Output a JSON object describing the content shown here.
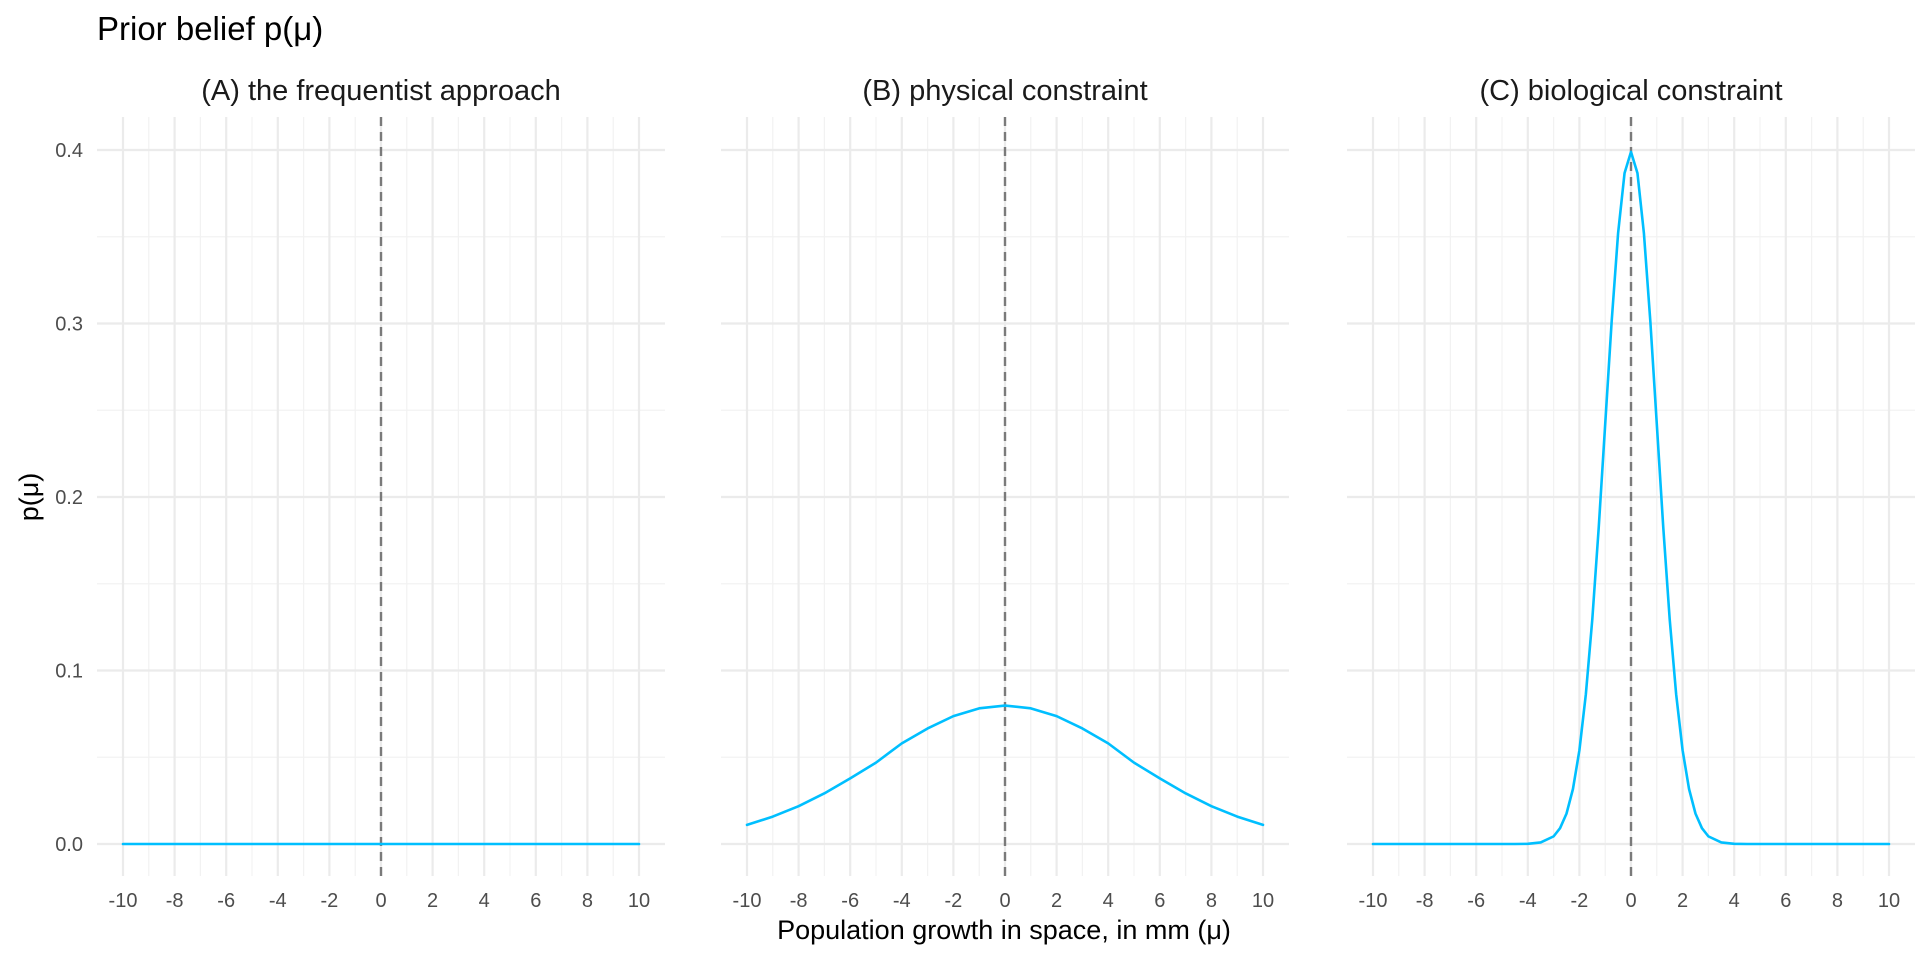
{
  "chart_data": {
    "type": "line",
    "title": "Prior belief p(μ)",
    "xlabel": "Population growth in space, in mm (μ)",
    "ylabel": "p(μ)",
    "xlim": [
      -10,
      10
    ],
    "ylim": [
      0,
      0.4
    ],
    "x_ticks": [
      "-10",
      "-8",
      "-6",
      "-4",
      "-2",
      "0",
      "2",
      "4",
      "6",
      "8",
      "10"
    ],
    "y_ticks": [
      "0.0",
      "0.1",
      "0.2",
      "0.3",
      "0.4"
    ],
    "grid": true,
    "reference_line": {
      "x": 0,
      "style": "dashed",
      "color": "#7a7a7a"
    },
    "line_color": "#00bfff",
    "facets": [
      {
        "title": "(A) the frequentist approach",
        "x": [
          -10,
          -8,
          -6,
          -4,
          -2,
          0,
          2,
          4,
          6,
          8,
          10
        ],
        "y": [
          0,
          0,
          0,
          0,
          0,
          0,
          0,
          0,
          0,
          0,
          0
        ]
      },
      {
        "title": "(B) physical constraint",
        "x": [
          -10,
          -9,
          -8,
          -7,
          -6,
          -5,
          -4,
          -3,
          -2,
          -1,
          0,
          1,
          2,
          3,
          4,
          5,
          6,
          7,
          8,
          9,
          10
        ],
        "y": [
          0.011,
          0.0158,
          0.0218,
          0.0292,
          0.0378,
          0.0469,
          0.058,
          0.0666,
          0.0737,
          0.0782,
          0.0798,
          0.0782,
          0.0737,
          0.0666,
          0.058,
          0.0469,
          0.0378,
          0.0292,
          0.0218,
          0.0158,
          0.011
        ]
      },
      {
        "title": "(C) biological constraint",
        "x": [
          -10,
          -8,
          -6,
          -4.5,
          -4,
          -3.5,
          -3,
          -2.75,
          -2.5,
          -2.25,
          -2,
          -1.75,
          -1.5,
          -1.25,
          -1,
          -0.75,
          -0.5,
          -0.25,
          0,
          0.25,
          0.5,
          0.75,
          1,
          1.25,
          1.5,
          1.75,
          2,
          2.25,
          2.5,
          2.75,
          3,
          3.5,
          4,
          4.5,
          6,
          8,
          10
        ],
        "y": [
          0,
          0,
          0,
          0,
          0.0001,
          0.0009,
          0.0044,
          0.0091,
          0.0175,
          0.0317,
          0.054,
          0.0863,
          0.1295,
          0.1826,
          0.242,
          0.3011,
          0.3521,
          0.3867,
          0.3989,
          0.3867,
          0.3521,
          0.3011,
          0.242,
          0.1826,
          0.1295,
          0.0863,
          0.054,
          0.0317,
          0.0175,
          0.0091,
          0.0044,
          0.0009,
          0.0001,
          0,
          0,
          0,
          0
        ]
      }
    ]
  }
}
